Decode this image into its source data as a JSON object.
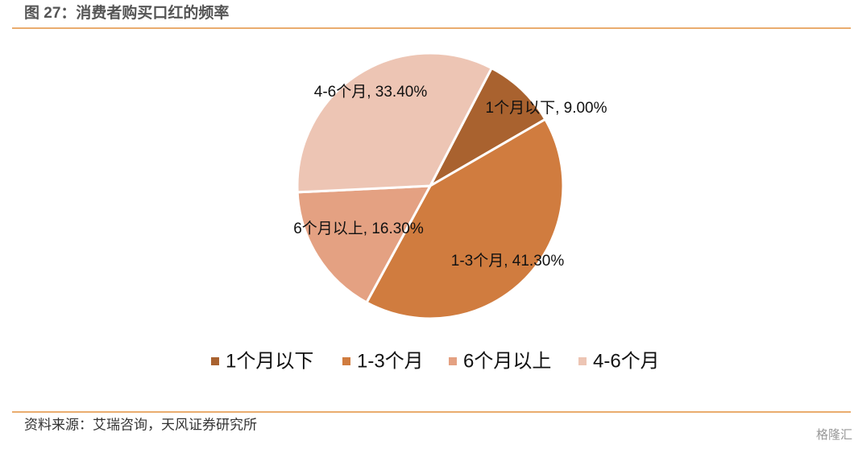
{
  "chart_data": {
    "type": "pie",
    "title": "图 27：消费者购买口红的频率",
    "categories": [
      "1个月以下",
      "1-3个月",
      "6个月以上",
      "4-6个月"
    ],
    "values": [
      9.0,
      41.3,
      16.3,
      33.4
    ],
    "value_labels": [
      "1个月以下, 9.00%",
      "1-3个月, 41.30%",
      "6个月以上, 16.30%",
      "4-6个月, 33.40%"
    ],
    "colors": [
      "#a9622f",
      "#d07c3f",
      "#e4a182",
      "#edc5b4"
    ],
    "legend": "bottom",
    "source": "资料来源：艾瑞咨询，天风证券研究所",
    "watermark": "格隆汇"
  }
}
